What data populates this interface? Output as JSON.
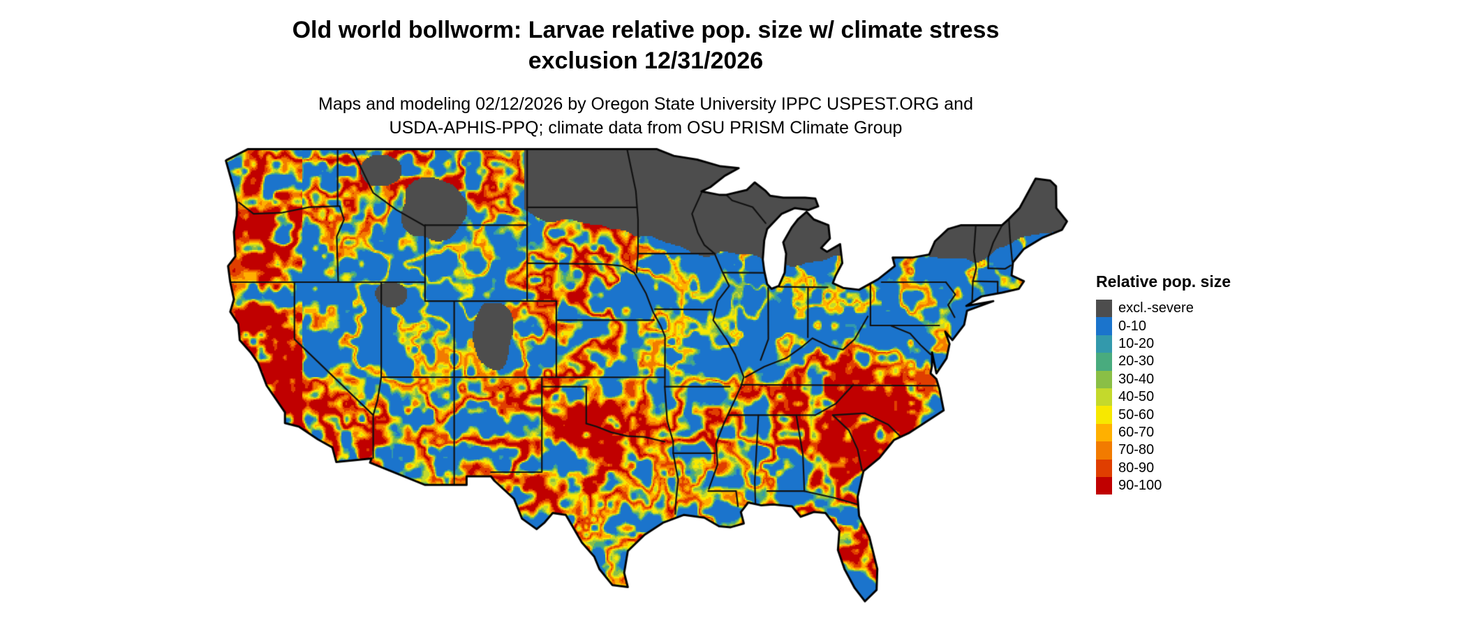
{
  "header": {
    "title": "Old world bollworm: Larvae relative pop. size w/ climate stress\nexclusion 12/31/2026",
    "subtitle": "Maps and modeling 02/12/2026 by Oregon State University IPPC USPEST.ORG and\nUSDA-APHIS-PPQ; climate data from OSU PRISM Climate Group"
  },
  "legend": {
    "title": "Relative pop. size",
    "entries": [
      {
        "label": "excl.-severe",
        "color": "#4d4d4d"
      },
      {
        "label": "0-10",
        "color": "#1b74cc"
      },
      {
        "label": "10-20",
        "color": "#3399ac"
      },
      {
        "label": "20-30",
        "color": "#49ab7e"
      },
      {
        "label": "30-40",
        "color": "#8abf46"
      },
      {
        "label": "40-50",
        "color": "#c4d92c"
      },
      {
        "label": "50-60",
        "color": "#f7e800"
      },
      {
        "label": "60-70",
        "color": "#ffb000"
      },
      {
        "label": "70-80",
        "color": "#f27b00"
      },
      {
        "label": "80-90",
        "color": "#e03e00"
      },
      {
        "label": "90-100",
        "color": "#c00000"
      }
    ]
  },
  "map": {
    "border_color": "#000000",
    "state_line_color": "#111111"
  }
}
